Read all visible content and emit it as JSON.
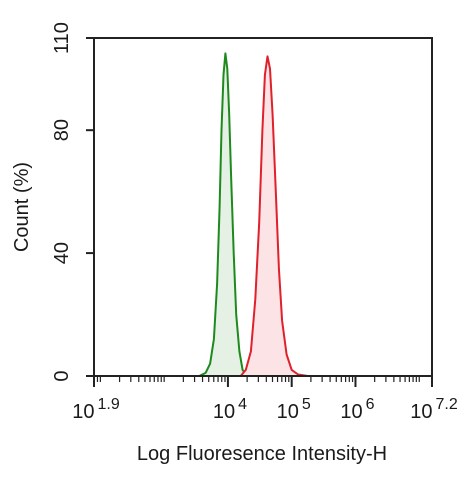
{
  "chart_data": {
    "type": "area",
    "title": "",
    "xlabel": "Log Fluoresence Intensity-H",
    "ylabel": "Count  (%)",
    "x_scale": "log10",
    "xlim": [
      1.9,
      7.2
    ],
    "ylim": [
      0,
      110
    ],
    "grid": false,
    "yticks": [
      {
        "value": 0,
        "label": "0"
      },
      {
        "value": 40,
        "label": "40"
      },
      {
        "value": 80,
        "label": "80"
      },
      {
        "value": 110,
        "label": "110"
      }
    ],
    "xticks": [
      {
        "exp": 1.9,
        "base": "10",
        "sup": "1.9"
      },
      {
        "exp": 4,
        "base": "10",
        "sup": "4"
      },
      {
        "exp": 5,
        "base": "10",
        "sup": "5"
      },
      {
        "exp": 6,
        "base": "10",
        "sup": "6"
      },
      {
        "exp": 7.2,
        "base": "10",
        "sup": "7.2"
      }
    ],
    "series": [
      {
        "color": "#1e8a1e",
        "fill": "#e4f1e4",
        "points": [
          [
            3.55,
            0
          ],
          [
            3.65,
            1
          ],
          [
            3.72,
            4
          ],
          [
            3.78,
            12
          ],
          [
            3.83,
            30
          ],
          [
            3.87,
            55
          ],
          [
            3.9,
            80
          ],
          [
            3.93,
            98
          ],
          [
            3.96,
            105
          ],
          [
            3.99,
            100
          ],
          [
            4.02,
            85
          ],
          [
            4.05,
            65
          ],
          [
            4.09,
            40
          ],
          [
            4.13,
            20
          ],
          [
            4.18,
            8
          ],
          [
            4.23,
            2
          ],
          [
            4.3,
            0
          ]
        ]
      },
      {
        "color": "#e0202a",
        "fill": "#fbe3e6",
        "points": [
          [
            4.2,
            0
          ],
          [
            4.28,
            2
          ],
          [
            4.36,
            8
          ],
          [
            4.43,
            25
          ],
          [
            4.49,
            50
          ],
          [
            4.54,
            80
          ],
          [
            4.58,
            98
          ],
          [
            4.62,
            104
          ],
          [
            4.66,
            100
          ],
          [
            4.7,
            85
          ],
          [
            4.75,
            60
          ],
          [
            4.8,
            35
          ],
          [
            4.85,
            18
          ],
          [
            4.92,
            7
          ],
          [
            5.0,
            2
          ],
          [
            5.1,
            0.5
          ],
          [
            5.25,
            0
          ]
        ]
      }
    ]
  }
}
